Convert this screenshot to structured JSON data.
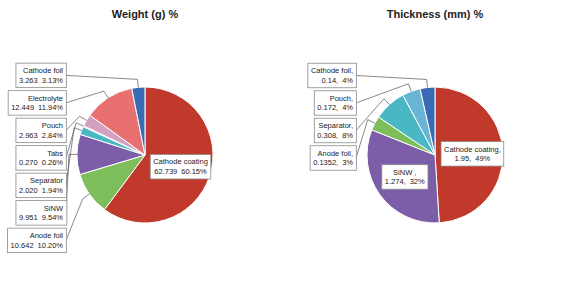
{
  "chart_data": [
    {
      "type": "pie",
      "title": "Weight (g) %",
      "categories": [
        "Cathode coating",
        "Anode foil",
        "SiNW",
        "Separator",
        "Tabs",
        "Pouch",
        "Electrolyte",
        "Cathode foil"
      ],
      "values": [
        62.739,
        10.642,
        9.951,
        2.02,
        0.27,
        2.963,
        12.449,
        3.263
      ],
      "value_labels": [
        "62.739",
        "10.642",
        "9.951",
        "2.020",
        "0.270",
        "2.963",
        "12.449",
        "3.263"
      ],
      "shares": [
        60.15,
        10.2,
        9.54,
        1.94,
        0.26,
        2.84,
        11.94,
        3.13
      ],
      "share_labels": [
        "60.15%",
        "10.20%",
        "9.54%",
        "1.94%",
        "0.26%",
        "2.84%",
        "11.94%",
        "3.13%"
      ],
      "colors": [
        "#c0392b",
        "#7dbe5a",
        "#7b5ea7",
        "#4ab8c4",
        "#d4a050",
        "#d4a0c0",
        "#e87070",
        "#3a6cb5"
      ],
      "data_labels": true
    },
    {
      "type": "pie",
      "title": "Thickness (mm) %",
      "categories": [
        "Cathode coating,",
        "SiNW ,",
        "Anode foil,",
        "Separator,",
        "Pouch,",
        "Cathode foil,"
      ],
      "values": [
        1.95,
        1.274,
        0.1352,
        0.308,
        0.172,
        0.14
      ],
      "value_labels": [
        "1.95,",
        "1.274,",
        "0.1352,",
        "0.308,",
        "0.172,",
        "0.14,"
      ],
      "shares": [
        49,
        32,
        3,
        8,
        4,
        4
      ],
      "share_labels": [
        "49%",
        "32%",
        "3%",
        "8%",
        "4%",
        "4%"
      ],
      "colors": [
        "#c0392b",
        "#7b5ea7",
        "#7dbe5a",
        "#4ab8c4",
        "#6ab5d4",
        "#3a6cb5"
      ],
      "data_labels": true
    }
  ]
}
